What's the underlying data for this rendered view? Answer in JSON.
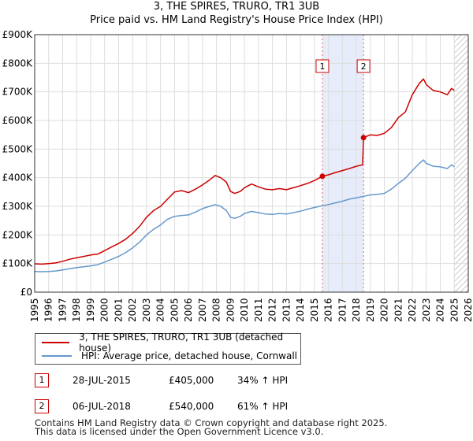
{
  "chart_data": {
    "type": "line",
    "title": "3, THE SPIRES, TRURO, TR1 3UB",
    "subtitle": "Price paid vs. HM Land Registry's House Price Index (HPI)",
    "x_ticks": [
      "1995",
      "1996",
      "1997",
      "1998",
      "1999",
      "2000",
      "2001",
      "2002",
      "2003",
      "2004",
      "2005",
      "2006",
      "2007",
      "2008",
      "2009",
      "2010",
      "2011",
      "2012",
      "2013",
      "2014",
      "2015",
      "2016",
      "2017",
      "2018",
      "2019",
      "2020",
      "2021",
      "2022",
      "2023",
      "2024",
      "2025",
      "2026"
    ],
    "xlim": [
      1995,
      2026
    ],
    "y_ticks": [
      "£0",
      "£100K",
      "£200K",
      "£300K",
      "£400K",
      "£500K",
      "£600K",
      "£700K",
      "£800K",
      "£900K"
    ],
    "ylim": [
      0,
      900000
    ],
    "grid": true,
    "future_hatch_from": 2025.0,
    "shaded_between": [
      2015.57,
      2018.51
    ],
    "series": [
      {
        "name": "3, THE SPIRES, TRURO, TR1 3UB (detached house)",
        "color": "#cc0000",
        "points": [
          [
            1995.0,
            99000
          ],
          [
            1995.5,
            98000
          ],
          [
            1996.0,
            100000
          ],
          [
            1996.5,
            102000
          ],
          [
            1997.0,
            108000
          ],
          [
            1997.5,
            115000
          ],
          [
            1998.0,
            120000
          ],
          [
            1998.5,
            125000
          ],
          [
            1999.0,
            130000
          ],
          [
            1999.5,
            133000
          ],
          [
            2000.0,
            145000
          ],
          [
            2000.5,
            158000
          ],
          [
            2001.0,
            170000
          ],
          [
            2001.5,
            185000
          ],
          [
            2002.0,
            205000
          ],
          [
            2002.5,
            230000
          ],
          [
            2003.0,
            262000
          ],
          [
            2003.5,
            285000
          ],
          [
            2004.0,
            300000
          ],
          [
            2004.5,
            325000
          ],
          [
            2005.0,
            350000
          ],
          [
            2005.5,
            355000
          ],
          [
            2006.0,
            348000
          ],
          [
            2006.5,
            360000
          ],
          [
            2007.0,
            375000
          ],
          [
            2007.5,
            392000
          ],
          [
            2007.9,
            408000
          ],
          [
            2008.3,
            400000
          ],
          [
            2008.7,
            385000
          ],
          [
            2009.0,
            352000
          ],
          [
            2009.3,
            345000
          ],
          [
            2009.7,
            352000
          ],
          [
            2010.0,
            365000
          ],
          [
            2010.5,
            378000
          ],
          [
            2011.0,
            368000
          ],
          [
            2011.5,
            360000
          ],
          [
            2012.0,
            358000
          ],
          [
            2012.5,
            362000
          ],
          [
            2013.0,
            358000
          ],
          [
            2013.5,
            365000
          ],
          [
            2014.0,
            372000
          ],
          [
            2014.5,
            380000
          ],
          [
            2015.0,
            390000
          ],
          [
            2015.57,
            405000
          ],
          [
            2016.0,
            410000
          ],
          [
            2016.5,
            418000
          ],
          [
            2017.0,
            425000
          ],
          [
            2017.5,
            432000
          ],
          [
            2018.0,
            440000
          ],
          [
            2018.45,
            445000
          ],
          [
            2018.51,
            540000
          ],
          [
            2019.0,
            550000
          ],
          [
            2019.5,
            548000
          ],
          [
            2020.0,
            555000
          ],
          [
            2020.5,
            575000
          ],
          [
            2021.0,
            610000
          ],
          [
            2021.5,
            630000
          ],
          [
            2022.0,
            690000
          ],
          [
            2022.5,
            730000
          ],
          [
            2022.8,
            745000
          ],
          [
            2023.0,
            725000
          ],
          [
            2023.5,
            705000
          ],
          [
            2024.0,
            700000
          ],
          [
            2024.5,
            690000
          ],
          [
            2024.8,
            712000
          ],
          [
            2025.0,
            705000
          ]
        ]
      },
      {
        "name": "HPI: Average price, detached house, Cornwall",
        "color": "#6699cc",
        "points": [
          [
            1995.0,
            72000
          ],
          [
            1995.5,
            71500
          ],
          [
            1996.0,
            72500
          ],
          [
            1996.5,
            74000
          ],
          [
            1997.0,
            78000
          ],
          [
            1997.5,
            82000
          ],
          [
            1998.0,
            86000
          ],
          [
            1998.5,
            89000
          ],
          [
            1999.0,
            92000
          ],
          [
            1999.5,
            96000
          ],
          [
            2000.0,
            105000
          ],
          [
            2000.5,
            115000
          ],
          [
            2001.0,
            125000
          ],
          [
            2001.5,
            138000
          ],
          [
            2002.0,
            155000
          ],
          [
            2002.5,
            175000
          ],
          [
            2003.0,
            200000
          ],
          [
            2003.5,
            220000
          ],
          [
            2004.0,
            235000
          ],
          [
            2004.5,
            255000
          ],
          [
            2005.0,
            265000
          ],
          [
            2005.5,
            268000
          ],
          [
            2006.0,
            270000
          ],
          [
            2006.5,
            280000
          ],
          [
            2007.0,
            292000
          ],
          [
            2007.5,
            300000
          ],
          [
            2007.9,
            306000
          ],
          [
            2008.3,
            300000
          ],
          [
            2008.7,
            285000
          ],
          [
            2009.0,
            262000
          ],
          [
            2009.3,
            258000
          ],
          [
            2009.7,
            265000
          ],
          [
            2010.0,
            275000
          ],
          [
            2010.5,
            282000
          ],
          [
            2011.0,
            278000
          ],
          [
            2011.5,
            273000
          ],
          [
            2012.0,
            272000
          ],
          [
            2012.5,
            275000
          ],
          [
            2013.0,
            273000
          ],
          [
            2013.5,
            278000
          ],
          [
            2014.0,
            283000
          ],
          [
            2014.5,
            290000
          ],
          [
            2015.0,
            296000
          ],
          [
            2015.57,
            302000
          ],
          [
            2016.0,
            306000
          ],
          [
            2016.5,
            312000
          ],
          [
            2017.0,
            318000
          ],
          [
            2017.5,
            325000
          ],
          [
            2018.0,
            330000
          ],
          [
            2018.51,
            335000
          ],
          [
            2019.0,
            340000
          ],
          [
            2019.5,
            342000
          ],
          [
            2020.0,
            345000
          ],
          [
            2020.5,
            360000
          ],
          [
            2021.0,
            380000
          ],
          [
            2021.5,
            398000
          ],
          [
            2022.0,
            425000
          ],
          [
            2022.5,
            450000
          ],
          [
            2022.8,
            462000
          ],
          [
            2023.0,
            450000
          ],
          [
            2023.5,
            440000
          ],
          [
            2024.0,
            438000
          ],
          [
            2024.5,
            432000
          ],
          [
            2024.8,
            445000
          ],
          [
            2025.0,
            438000
          ]
        ]
      }
    ],
    "markers": [
      {
        "label": "1",
        "x": 2015.57,
        "value": 405000
      },
      {
        "label": "2",
        "x": 2018.51,
        "value": 540000
      }
    ]
  },
  "legend": {
    "entries": [
      {
        "label": "3, THE SPIRES, TRURO, TR1 3UB (detached house)",
        "color": "#cc0000"
      },
      {
        "label": "HPI: Average price, detached house, Cornwall",
        "color": "#6699cc"
      }
    ]
  },
  "transactions": [
    {
      "badge": "1",
      "date": "28-JUL-2015",
      "price": "£405,000",
      "hpi": "34% ↑ HPI"
    },
    {
      "badge": "2",
      "date": "06-JUL-2018",
      "price": "£540,000",
      "hpi": "61% ↑ HPI"
    }
  ],
  "footer": {
    "line1": "Contains HM Land Registry data © Crown copyright and database right 2025.",
    "line2": "This data is licensed under the Open Government Licence v3.0."
  }
}
